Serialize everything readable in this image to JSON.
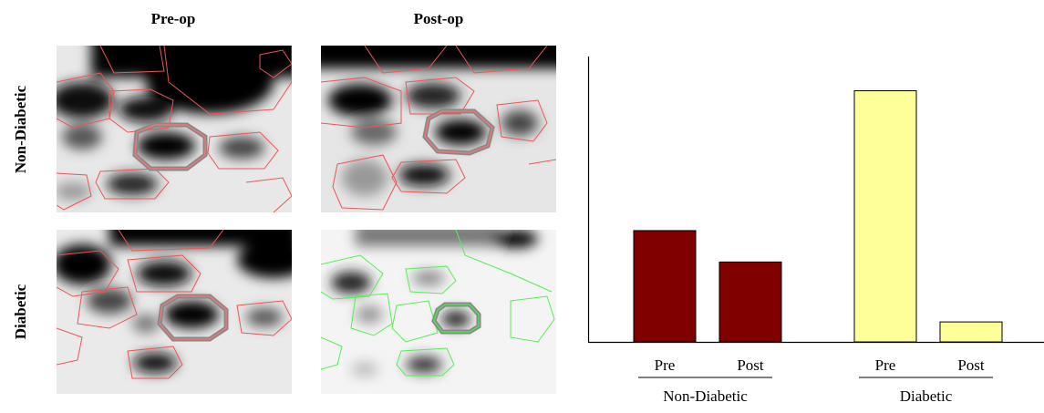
{
  "figure": {
    "columns": [
      "Pre-op",
      "Post-op"
    ],
    "rows": [
      "Non-Diabetic",
      "Diabetic"
    ]
  },
  "chart_data": {
    "type": "bar",
    "categories": [
      "Pre",
      "Post"
    ],
    "series": [
      {
        "name": "Non-Diabetic",
        "color": "#800000",
        "values": [
          39,
          28
        ]
      },
      {
        "name": "Diabetic",
        "color": "#ffff99",
        "values": [
          88,
          7
        ]
      }
    ],
    "ylim": [
      0,
      100
    ]
  }
}
